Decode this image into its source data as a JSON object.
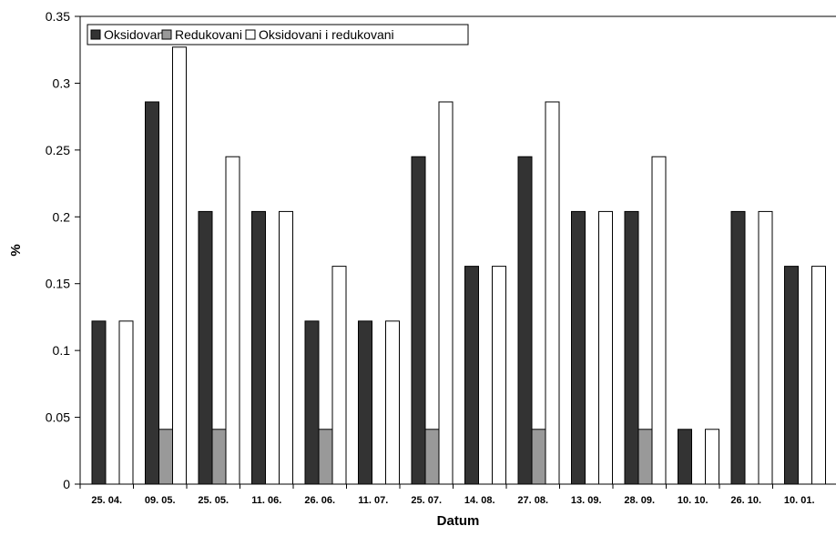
{
  "chart_data": {
    "type": "bar",
    "title": "",
    "xlabel": "Datum",
    "ylabel": "%",
    "ylim": [
      0,
      0.35
    ],
    "yticks": [
      "0",
      "0.05",
      "0.1",
      "0.15",
      "0.2",
      "0.25",
      "0.3",
      "0.35"
    ],
    "grid": false,
    "legend_position": "top-left",
    "categories": [
      "25. 04.",
      "09. 05.",
      "25. 05.",
      "11. 06.",
      "26. 06.",
      "11. 07.",
      "25. 07.",
      "14. 08.",
      "27. 08.",
      "13. 09.",
      "28. 09.",
      "10. 10.",
      "26. 10.",
      "10. 01."
    ],
    "series": [
      {
        "name": "Oksidovani",
        "color": "#333333",
        "values": [
          0.122,
          0.286,
          0.204,
          0.204,
          0.122,
          0.122,
          0.245,
          0.163,
          0.245,
          0.204,
          0.204,
          0.041,
          0.204,
          0.163
        ]
      },
      {
        "name": "Redukovani",
        "color": "#999999",
        "values": [
          0,
          0.041,
          0.041,
          0,
          0.041,
          0,
          0.041,
          0,
          0.041,
          0,
          0.041,
          0,
          0,
          0
        ]
      },
      {
        "name": "Oksidovani i redukovani",
        "color": "#ffffff",
        "values": [
          0.122,
          0.327,
          0.245,
          0.204,
          0.163,
          0.122,
          0.286,
          0.163,
          0.286,
          0.204,
          0.245,
          0.041,
          0.204,
          0.163
        ]
      }
    ]
  }
}
